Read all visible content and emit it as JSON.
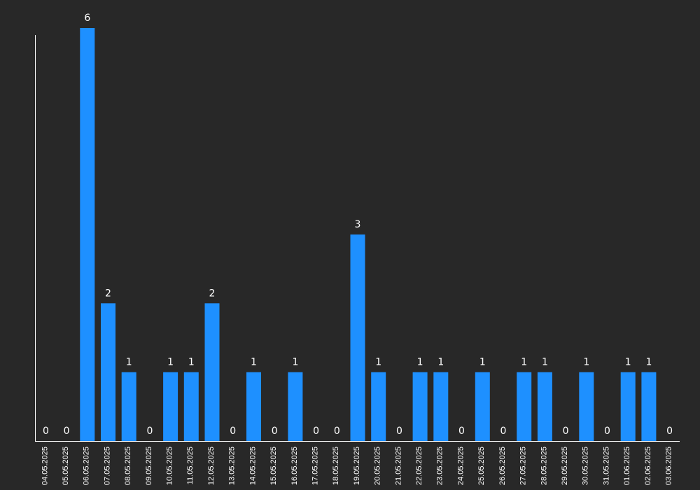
{
  "chart_data": {
    "type": "bar",
    "categories": [
      "04.05.2025",
      "05.05.2025",
      "06.05.2025",
      "07.05.2025",
      "08.05.2025",
      "09.05.2025",
      "10.05.2025",
      "11.05.2025",
      "12.05.2025",
      "13.05.2025",
      "14.05.2025",
      "15.05.2025",
      "16.05.2025",
      "17.05.2025",
      "18.05.2025",
      "19.05.2025",
      "20.05.2025",
      "21.05.2025",
      "22.05.2025",
      "23.05.2025",
      "24.05.2025",
      "25.05.2025",
      "26.05.2025",
      "27.05.2025",
      "28.05.2025",
      "29.05.2025",
      "30.05.2025",
      "31.05.2025",
      "01.06.2025",
      "02.06.2025",
      "03.06.2025"
    ],
    "values": [
      0,
      0,
      6,
      2,
      1,
      0,
      1,
      1,
      2,
      0,
      1,
      0,
      1,
      0,
      0,
      3,
      1,
      0,
      1,
      1,
      0,
      1,
      0,
      1,
      1,
      0,
      1,
      0,
      1,
      1,
      0
    ],
    "title": "",
    "xlabel": "",
    "ylabel": "",
    "ylim": [
      0,
      6
    ],
    "grid": false,
    "data_labels": true,
    "colors": {
      "background": "#282828",
      "bar": "#1e90ff",
      "axis": "#ffffff",
      "text": "#ffffff"
    }
  }
}
